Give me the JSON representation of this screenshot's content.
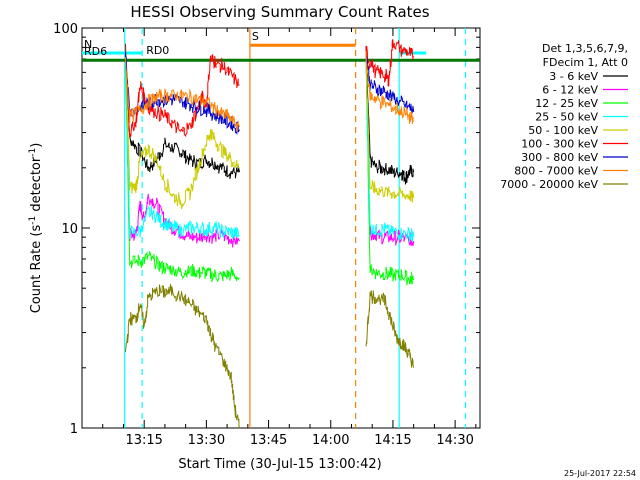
{
  "chart_data": {
    "type": "line",
    "title": "HESSI Observing Summary Count Rates",
    "xlabel": "Start Time (30-Jul-15 13:00:42)",
    "ylabel_main": "Count Rate (s",
    "ylabel_sup1": "-1",
    "ylabel_mid": " detector",
    "ylabel_sup2": "-1",
    "ylabel_end": ")",
    "yscale": "log",
    "ylim": [
      1,
      100
    ],
    "xlim_minutes": [
      0,
      96
    ],
    "x_ticks": [
      {
        "m": 15,
        "label": "13:15"
      },
      {
        "m": 30,
        "label": "13:30"
      },
      {
        "m": 45,
        "label": "13:45"
      },
      {
        "m": 60,
        "label": "14:00"
      },
      {
        "m": 75,
        "label": "14:15"
      },
      {
        "m": 90,
        "label": "14:30"
      }
    ],
    "y_ticks": [
      {
        "v": 1,
        "label": "1"
      },
      {
        "v": 10,
        "label": "10"
      },
      {
        "v": 100,
        "label": "100"
      }
    ],
    "legend_title": [
      "Det 1,3,5,6,7,9,",
      "FDecim 1, Att 0"
    ],
    "series": [
      {
        "name": "3 - 6 keV",
        "color": "#000000",
        "seg1": [
          [
            10.5,
            75
          ],
          [
            11.5,
            28
          ],
          [
            14,
            24
          ],
          [
            16,
            20
          ],
          [
            18,
            22
          ],
          [
            20,
            26
          ],
          [
            22,
            25
          ],
          [
            24,
            24
          ],
          [
            26,
            22
          ],
          [
            28,
            21
          ],
          [
            30,
            22
          ],
          [
            32,
            21
          ],
          [
            34,
            20
          ],
          [
            36,
            19
          ],
          [
            38,
            19
          ]
        ],
        "seg2": [
          [
            68.5,
            75
          ],
          [
            69.5,
            22
          ],
          [
            71,
            20
          ],
          [
            73,
            20
          ],
          [
            75,
            19
          ],
          [
            77,
            19
          ],
          [
            78,
            18
          ],
          [
            79,
            19
          ],
          [
            80,
            19
          ]
        ]
      },
      {
        "name": "6 - 12 keV",
        "color": "#ff00ff",
        "seg1": [
          [
            10.5,
            70
          ],
          [
            11.5,
            9.2
          ],
          [
            13,
            9.3
          ],
          [
            14,
            13
          ],
          [
            15,
            11
          ],
          [
            16,
            14.5
          ],
          [
            18,
            13
          ],
          [
            20,
            11
          ],
          [
            22,
            10
          ],
          [
            24,
            9.5
          ],
          [
            26,
            9
          ],
          [
            28,
            9
          ],
          [
            30,
            9.3
          ],
          [
            32,
            9
          ],
          [
            34,
            9.2
          ],
          [
            36,
            8.8
          ],
          [
            38,
            8.6
          ]
        ],
        "seg2": [
          [
            68.5,
            70
          ],
          [
            69.5,
            9.5
          ],
          [
            71,
            9.2
          ],
          [
            73,
            9
          ],
          [
            75,
            9
          ],
          [
            77,
            8.9
          ],
          [
            79,
            8.8
          ],
          [
            80,
            8.6
          ]
        ]
      },
      {
        "name": "12 - 25 keV",
        "color": "#00ff00",
        "seg1": [
          [
            10.5,
            68
          ],
          [
            11.5,
            6.8
          ],
          [
            14,
            6.8
          ],
          [
            16,
            7.2
          ],
          [
            18,
            6.6
          ],
          [
            20,
            6.3
          ],
          [
            22,
            6.2
          ],
          [
            24,
            6
          ],
          [
            26,
            6.1
          ],
          [
            28,
            6
          ],
          [
            30,
            6
          ],
          [
            32,
            5.8
          ],
          [
            34,
            5.7
          ],
          [
            36,
            5.9
          ],
          [
            38,
            5.6
          ]
        ],
        "seg2": [
          [
            68.5,
            68
          ],
          [
            69.5,
            6.2
          ],
          [
            71,
            6
          ],
          [
            73,
            5.9
          ],
          [
            75,
            5.8
          ],
          [
            77,
            5.8
          ],
          [
            79,
            5.6
          ],
          [
            80,
            5.5
          ]
        ]
      },
      {
        "name": "25 - 50 keV",
        "color": "#00ffff",
        "seg1": [
          [
            10.5,
            72
          ],
          [
            11.5,
            9.5
          ],
          [
            14,
            9.6
          ],
          [
            16,
            12
          ],
          [
            18,
            11.5
          ],
          [
            20,
            10.5
          ],
          [
            22,
            10
          ],
          [
            24,
            9.8
          ],
          [
            26,
            10
          ],
          [
            28,
            10
          ],
          [
            30,
            9.8
          ],
          [
            32,
            10
          ],
          [
            34,
            9.6
          ],
          [
            36,
            9.5
          ],
          [
            38,
            9.2
          ]
        ],
        "seg2": [
          [
            68.5,
            72
          ],
          [
            69.5,
            10
          ],
          [
            71,
            9.8
          ],
          [
            73,
            9.8
          ],
          [
            75,
            9.6
          ],
          [
            77,
            9.5
          ],
          [
            79,
            9.3
          ],
          [
            80,
            9.1
          ]
        ]
      },
      {
        "name": "50 - 100 keV",
        "color": "#cccc00",
        "seg1": [
          [
            10.5,
            74
          ],
          [
            11.5,
            16
          ],
          [
            13,
            16
          ],
          [
            14,
            22
          ],
          [
            16,
            25
          ],
          [
            18,
            22
          ],
          [
            20,
            17
          ],
          [
            22,
            14.5
          ],
          [
            24,
            13.5
          ],
          [
            26,
            15
          ],
          [
            28,
            20
          ],
          [
            30,
            27
          ],
          [
            31,
            30
          ],
          [
            32,
            28
          ],
          [
            34,
            24
          ],
          [
            36,
            22
          ],
          [
            38,
            20
          ]
        ],
        "seg2": [
          [
            68.5,
            74
          ],
          [
            69.5,
            16
          ],
          [
            71,
            15.5
          ],
          [
            73,
            15.2
          ],
          [
            75,
            15
          ],
          [
            77,
            14.8
          ],
          [
            79,
            14.5
          ],
          [
            80,
            14.2
          ]
        ]
      },
      {
        "name": "100 - 300 keV",
        "color": "#ff0000",
        "seg1": [
          [
            10.5,
            78
          ],
          [
            11.5,
            30
          ],
          [
            13,
            34
          ],
          [
            14,
            52
          ],
          [
            15,
            45
          ],
          [
            16,
            40
          ],
          [
            18,
            38
          ],
          [
            20,
            36
          ],
          [
            22,
            33
          ],
          [
            24,
            30
          ],
          [
            26,
            32
          ],
          [
            28,
            40
          ],
          [
            29,
            45
          ],
          [
            30,
            42
          ],
          [
            31,
            70
          ],
          [
            32,
            68
          ],
          [
            34,
            64
          ],
          [
            36,
            58
          ],
          [
            38,
            52
          ]
        ],
        "seg2": [
          [
            68.5,
            78
          ],
          [
            69,
            70
          ],
          [
            71,
            60
          ],
          [
            73,
            58
          ],
          [
            74,
            55
          ],
          [
            75,
            86
          ],
          [
            77,
            78
          ],
          [
            79,
            75
          ],
          [
            80,
            72
          ]
        ]
      },
      {
        "name": "300 - 800 keV",
        "color": "#0000cc",
        "seg1": [
          [
            10.5,
            76
          ],
          [
            11.5,
            38
          ],
          [
            14,
            40
          ],
          [
            16,
            42
          ],
          [
            18,
            44
          ],
          [
            20,
            44
          ],
          [
            22,
            44
          ],
          [
            24,
            43
          ],
          [
            26,
            42
          ],
          [
            28,
            40
          ],
          [
            30,
            39
          ],
          [
            32,
            37
          ],
          [
            34,
            35
          ],
          [
            36,
            33
          ],
          [
            38,
            31
          ]
        ],
        "seg2": [
          [
            68.5,
            76
          ],
          [
            69.5,
            52
          ],
          [
            71,
            50
          ],
          [
            73,
            48
          ],
          [
            75,
            45
          ],
          [
            77,
            42
          ],
          [
            79,
            40
          ],
          [
            80,
            38
          ]
        ]
      },
      {
        "name": "800 - 7000 keV",
        "color": "#ff8000",
        "seg1": [
          [
            10.5,
            70
          ],
          [
            11.5,
            36
          ],
          [
            14,
            39
          ],
          [
            16,
            43
          ],
          [
            18,
            45
          ],
          [
            20,
            46
          ],
          [
            22,
            46
          ],
          [
            24,
            46
          ],
          [
            26,
            45
          ],
          [
            28,
            44
          ],
          [
            30,
            43
          ],
          [
            32,
            40
          ],
          [
            34,
            37
          ],
          [
            36,
            35
          ],
          [
            38,
            32
          ]
        ],
        "seg2": [
          [
            68.5,
            70
          ],
          [
            69.5,
            46
          ],
          [
            71,
            44
          ],
          [
            73,
            42
          ],
          [
            75,
            40
          ],
          [
            77,
            38
          ],
          [
            79,
            36
          ],
          [
            80,
            34
          ]
        ]
      },
      {
        "name": "7000 - 20000 keV",
        "color": "#808000",
        "seg1": [
          [
            10.5,
            2.4
          ],
          [
            11.5,
            3.5
          ],
          [
            13,
            3.5
          ],
          [
            14,
            4.2
          ],
          [
            15,
            3.2
          ],
          [
            16,
            4.5
          ],
          [
            18,
            4.8
          ],
          [
            20,
            4.8
          ],
          [
            22,
            4.8
          ],
          [
            24,
            4.5
          ],
          [
            26,
            4.2
          ],
          [
            28,
            3.8
          ],
          [
            30,
            3.5
          ],
          [
            31,
            3.0
          ],
          [
            32,
            2.6
          ],
          [
            34,
            2.2
          ],
          [
            36,
            1.8
          ],
          [
            37,
            1.2
          ],
          [
            38,
            1.0
          ]
        ],
        "seg2": [
          [
            68.5,
            2.6
          ],
          [
            69.5,
            4.6
          ],
          [
            71,
            4.5
          ],
          [
            73,
            4.3
          ],
          [
            74,
            3.8
          ],
          [
            75,
            3.2
          ],
          [
            76,
            2.8
          ],
          [
            77,
            2.7
          ],
          [
            78,
            2.5
          ],
          [
            79,
            2.3
          ],
          [
            80,
            2.0
          ]
        ]
      }
    ],
    "flags": [
      {
        "label": "N",
        "color": "#00ffff",
        "segments": [
          [
            0,
            14.5,
            75
          ],
          [
            76.5,
            83,
            90,
            75
          ]
        ]
      },
      {
        "label": "RD0",
        "color": "#ff8000",
        "segments": [
          [
            15,
            70
          ]
        ]
      },
      {
        "label": "S",
        "color": "#ff8000",
        "segments": [
          [
            40.5,
            66,
            82
          ]
        ]
      },
      {
        "label": "RD6",
        "color": "#007700",
        "segments": [
          [
            0,
            96,
            69
          ]
        ]
      }
    ],
    "vlines": [
      {
        "m": 10.3,
        "color": "#00ffff",
        "dashed": false
      },
      {
        "m": 14.5,
        "color": "#00ffff",
        "dashed": true
      },
      {
        "m": 40.5,
        "color": "#ff8000",
        "dashed": false
      },
      {
        "m": 66,
        "color": "#ff8000",
        "dashed": true
      },
      {
        "m": 76.5,
        "color": "#00ffff",
        "dashed": false
      },
      {
        "m": 92.5,
        "color": "#00ffff",
        "dashed": true
      }
    ],
    "timestamp": "25-Jul-2017 22:54"
  }
}
